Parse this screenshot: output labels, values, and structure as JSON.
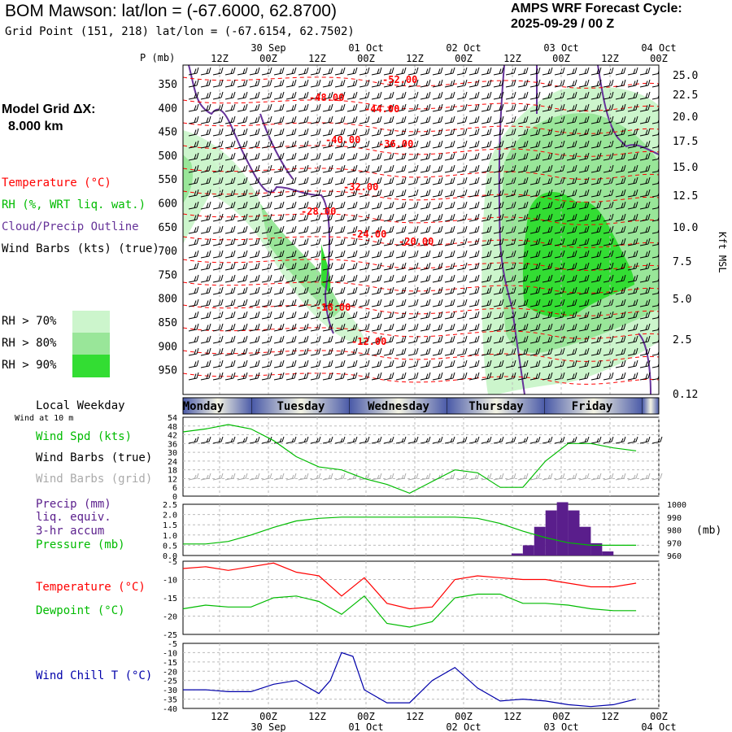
{
  "header": {
    "title": "BOM Mawson:  lat/lon = (-67.6000, 62.8700)",
    "subtitle": "Grid Point (151, 218) lat/lon = (-67.6154, 62.7502)",
    "cycle_label": "AMPS WRF Forecast Cycle:",
    "cycle_value": "2025-09-29 / 00  Z"
  },
  "model": {
    "label": "Model Grid ΔX:",
    "value": "8.000 km"
  },
  "legend": {
    "temperature": "Temperature (°C)",
    "rh": "RH (%, WRT liq. wat.)",
    "cloud": "Cloud/Precip Outline",
    "wind": "Wind Barbs (kts) (true)",
    "rh_bins": [
      {
        "label": "RH > 70%",
        "color": "#ccf5cc"
      },
      {
        "label": "RH > 80%",
        "color": "#99e699"
      },
      {
        "label": "RH > 90%",
        "color": "#33dd33"
      }
    ]
  },
  "colors": {
    "temperature": "#ff0000",
    "rh70": "#ccf5cc",
    "rh80": "#99e699",
    "rh90": "#33dd33",
    "cloud": "#663399",
    "wind_speed": "#00bb00",
    "dewpoint": "#00bb00",
    "precip": "#5a1e8c",
    "pressure": "#00bb00",
    "windchill": "#0000aa",
    "grid_barbs": "#aaaaaa",
    "day_band_dark": "#4a5aa8",
    "day_band_light": "#f4f4e4"
  },
  "time_axis": {
    "top_dates": [
      "30 Sep",
      "01 Oct",
      "02 Oct",
      "03 Oct",
      "04 Oct"
    ],
    "hour_ticks": [
      "12Z",
      "00Z",
      "12Z",
      "00Z",
      "12Z",
      "00Z",
      "12Z",
      "00Z",
      "12Z",
      "00Z"
    ],
    "bottom_dates": [
      "30 Sep",
      "01 Oct",
      "02 Oct",
      "03 Oct",
      "04 Oct"
    ]
  },
  "weekdays": [
    "Monday",
    "Tuesday",
    "Wednesday",
    "Thursday",
    "Friday"
  ],
  "cross_section": {
    "ylabel": "P (mb)",
    "pressure_ticks": [
      "350",
      "400",
      "450",
      "500",
      "550",
      "600",
      "650",
      "700",
      "750",
      "800",
      "850",
      "900",
      "950"
    ],
    "height_ticks": [
      "25.0",
      "22.5",
      "20.0",
      "17.5",
      "15.0",
      "12.5",
      "10.0",
      "7.5",
      "5.0",
      "2.5",
      "0.12"
    ],
    "height_label": "Kft MSL",
    "temp_labels": [
      "-52.00",
      "-48.00",
      "-44.00",
      "-40.00",
      "-36.00",
      "-32.00",
      "-28.00",
      "-24.00",
      "-20.00",
      "-16.00",
      "-12.00"
    ]
  },
  "panels": {
    "weekday_label": "Local Weekday",
    "wind_note": "Wind at 10 m",
    "wind_spd": "Wind Spd (kts)",
    "wind_barbs_true": "Wind Barbs (true)",
    "wind_barbs_grid": "Wind Barbs (grid)",
    "precip": [
      "Precip (mm)",
      "liq. equiv.",
      "3-hr accum"
    ],
    "pressure": "Pressure (mb)",
    "pressure_unit": "(mb)",
    "temperature": "Temperature (°C)",
    "dewpoint": "Dewpoint (°C)",
    "windchill": "Wind Chill T (°C)"
  },
  "chart_data": [
    {
      "type": "line",
      "title": "Wind Spd (kts)",
      "x_hours": [
        0,
        6,
        12,
        18,
        24,
        30,
        36,
        42,
        48,
        54,
        60,
        66,
        72,
        78,
        84,
        90,
        96,
        102,
        108,
        114,
        120
      ],
      "series": [
        {
          "name": "Wind Spd (kts)",
          "values": [
            44,
            46,
            49,
            46,
            38,
            27,
            20,
            18,
            12,
            8,
            2,
            10,
            18,
            16,
            6,
            6,
            24,
            36,
            36,
            33,
            31
          ]
        }
      ],
      "ylim": [
        0,
        54
      ],
      "yticks": [
        "54",
        "48",
        "42",
        "36",
        "30",
        "24",
        "18",
        "12",
        "6",
        "0"
      ]
    },
    {
      "type": "bar",
      "title": "Precip (mm) liq. equiv. 3-hr accum",
      "x_start_hours": [
        87,
        90,
        93,
        96,
        99,
        102,
        105,
        108,
        111
      ],
      "values": [
        0.1,
        0.5,
        1.4,
        2.2,
        2.6,
        2.2,
        1.4,
        0.6,
        0.2
      ],
      "ylim": [
        0,
        2.5
      ],
      "yticks": [
        "2.5",
        "2.0",
        "1.5",
        "1.0",
        "0.5",
        "0.0"
      ]
    },
    {
      "type": "line",
      "title": "Pressure (mb)",
      "x_hours": [
        0,
        6,
        12,
        18,
        24,
        30,
        36,
        42,
        48,
        54,
        60,
        66,
        72,
        78,
        84,
        90,
        96,
        102,
        108,
        114,
        120
      ],
      "series": [
        {
          "name": "Pressure (mb)",
          "values": [
            969,
            969,
            971,
            976,
            982,
            987,
            989,
            990,
            990,
            990,
            990,
            990,
            990,
            989,
            985,
            979,
            974,
            970,
            968,
            968,
            968
          ]
        }
      ],
      "ylim": [
        960,
        1000
      ],
      "yticks": [
        "1000",
        "990",
        "980",
        "970",
        "960"
      ]
    },
    {
      "type": "line",
      "title": "Temperature / Dewpoint (°C)",
      "x_hours": [
        0,
        6,
        12,
        18,
        24,
        30,
        36,
        42,
        48,
        54,
        60,
        66,
        72,
        78,
        84,
        90,
        96,
        102,
        108,
        114,
        120
      ],
      "series": [
        {
          "name": "Temperature (°C)",
          "values": [
            -7,
            -6.5,
            -7.5,
            -6.5,
            -5.5,
            -8,
            -9,
            -14.5,
            -9.5,
            -16.5,
            -18,
            -17.5,
            -10,
            -9,
            -9.5,
            -10,
            -10,
            -11,
            -12,
            -12,
            -11
          ]
        },
        {
          "name": "Dewpoint (°C)",
          "values": [
            -18,
            -17,
            -17.5,
            -17.5,
            -15,
            -14.5,
            -16,
            -19.5,
            -14.5,
            -22,
            -23,
            -21.5,
            -15,
            -14,
            -14,
            -16.5,
            -16.5,
            -17,
            -18,
            -18.5,
            -18.5
          ]
        }
      ],
      "ylim": [
        -25,
        -5
      ],
      "yticks": [
        "-5",
        "-10",
        "-15",
        "-20",
        "-25"
      ]
    },
    {
      "type": "line",
      "title": "Wind Chill T (°C)",
      "x_hours": [
        0,
        6,
        12,
        18,
        24,
        30,
        36,
        39,
        42,
        45,
        48,
        54,
        60,
        66,
        72,
        78,
        84,
        90,
        96,
        102,
        108,
        114,
        120
      ],
      "series": [
        {
          "name": "Wind Chill T (°C)",
          "values": [
            -30,
            -30,
            -31,
            -31,
            -27,
            -25,
            -32,
            -25,
            -10,
            -12,
            -30,
            -37,
            -37,
            -25,
            -18,
            -29,
            -36,
            -35,
            -36,
            -38,
            -39,
            -38,
            -35
          ]
        }
      ],
      "ylim": [
        -40,
        -5
      ],
      "yticks": [
        "-5",
        "-10",
        "-15",
        "-20",
        "-25",
        "-30",
        "-35",
        "-40"
      ]
    }
  ]
}
